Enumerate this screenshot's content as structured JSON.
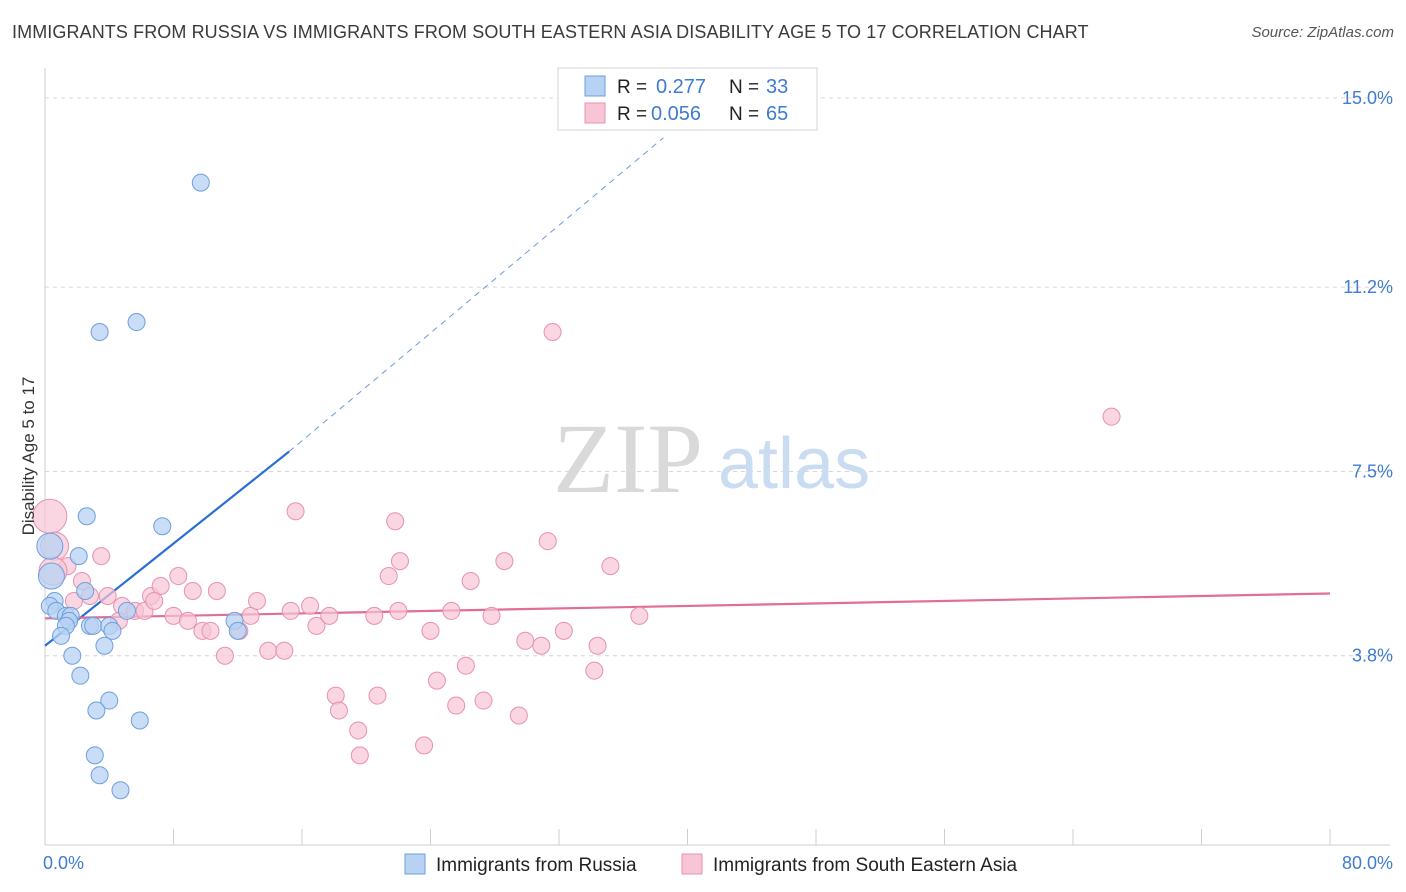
{
  "title": "IMMIGRANTS FROM RUSSIA VS IMMIGRANTS FROM SOUTH EASTERN ASIA DISABILITY AGE 5 TO 17 CORRELATION CHART",
  "source": "Source: ZipAtlas.com",
  "watermark": {
    "zip": "ZIP",
    "atlas": "atlas"
  },
  "colors": {
    "russia_fill": "#b7d2f3",
    "russia_stroke": "#6e9fdc",
    "russia_line": "#2b6fd1",
    "sea_fill": "#f7c5d6",
    "sea_stroke": "#e890b0",
    "sea_line": "#e26d97",
    "grid": "#d7d7d7",
    "axis_label": "#3f7bd0"
  },
  "legend": {
    "rows": [
      {
        "r_label": "R = ",
        "r_value": "0.277",
        "n_label": "N = ",
        "n_value": "33"
      },
      {
        "r_label": "R = ",
        "r_value": "0.056",
        "n_label": "N = ",
        "n_value": "65"
      }
    ]
  },
  "chart_data": {
    "type": "scatter",
    "title": "IMMIGRANTS FROM RUSSIA VS IMMIGRANTS FROM SOUTH EASTERN ASIA DISABILITY AGE 5 TO 17 CORRELATION CHART",
    "xlabel": "",
    "ylabel": "Disability Age 5 to 17",
    "xlim": [
      0,
      80
    ],
    "ylim": [
      0,
      15.5
    ],
    "x_tick_labels": [
      "0.0%",
      "80.0%"
    ],
    "y_ticks": [
      3.8,
      7.5,
      11.2,
      15.0
    ],
    "y_tick_labels": [
      "3.8%",
      "7.5%",
      "11.2%",
      "15.0%"
    ],
    "grid": true,
    "series": [
      {
        "name": "Immigrants from Russia",
        "R": 0.277,
        "N": 33,
        "trend": {
          "x0": 0,
          "y0": 4.0,
          "x1_solid": 15.2,
          "y1_solid": 7.9,
          "x1_dash": 38.5,
          "y1_dash": 14.2
        },
        "points": [
          [
            9.7,
            13.3
          ],
          [
            3.4,
            10.3
          ],
          [
            5.7,
            10.5
          ],
          [
            2.6,
            6.6
          ],
          [
            7.3,
            6.4
          ],
          [
            0.3,
            6.0
          ],
          [
            2.1,
            5.8
          ],
          [
            0.4,
            5.4
          ],
          [
            2.5,
            5.1
          ],
          [
            0.6,
            4.9
          ],
          [
            0.3,
            4.8
          ],
          [
            0.7,
            4.7
          ],
          [
            1.3,
            4.6
          ],
          [
            1.6,
            4.6
          ],
          [
            5.1,
            4.7
          ],
          [
            1.5,
            4.5
          ],
          [
            1.3,
            4.4
          ],
          [
            2.8,
            4.4
          ],
          [
            3.0,
            4.4
          ],
          [
            4.0,
            4.4
          ],
          [
            4.2,
            4.3
          ],
          [
            11.8,
            4.5
          ],
          [
            1.0,
            4.2
          ],
          [
            3.7,
            4.0
          ],
          [
            1.7,
            3.8
          ],
          [
            2.2,
            3.4
          ],
          [
            4.0,
            2.9
          ],
          [
            3.2,
            2.7
          ],
          [
            5.9,
            2.5
          ],
          [
            3.1,
            1.8
          ],
          [
            3.4,
            1.4
          ],
          [
            4.7,
            1.1
          ],
          [
            12.0,
            4.3
          ]
        ]
      },
      {
        "name": "Immigrants from South Eastern Asia",
        "R": 0.056,
        "N": 65,
        "trend": {
          "x0": 0,
          "y0": 4.55,
          "x1": 80,
          "y1": 5.05
        },
        "points": [
          [
            0.3,
            6.6
          ],
          [
            0.6,
            6.0
          ],
          [
            1.4,
            5.6
          ],
          [
            3.5,
            5.8
          ],
          [
            2.3,
            5.3
          ],
          [
            2.8,
            5.0
          ],
          [
            3.9,
            5.0
          ],
          [
            4.8,
            4.8
          ],
          [
            5.6,
            4.7
          ],
          [
            4.6,
            4.5
          ],
          [
            6.2,
            4.7
          ],
          [
            6.6,
            5.0
          ],
          [
            7.2,
            5.2
          ],
          [
            8.3,
            5.4
          ],
          [
            9.2,
            5.1
          ],
          [
            10.7,
            5.1
          ],
          [
            6.8,
            4.9
          ],
          [
            8.0,
            4.6
          ],
          [
            8.9,
            4.5
          ],
          [
            9.8,
            4.3
          ],
          [
            10.3,
            4.3
          ],
          [
            11.2,
            3.8
          ],
          [
            12.1,
            4.3
          ],
          [
            12.8,
            4.6
          ],
          [
            13.2,
            4.9
          ],
          [
            13.9,
            3.9
          ],
          [
            14.9,
            3.9
          ],
          [
            15.3,
            4.7
          ],
          [
            15.6,
            6.7
          ],
          [
            16.5,
            4.8
          ],
          [
            16.9,
            4.4
          ],
          [
            18.1,
            3.0
          ],
          [
            17.7,
            4.6
          ],
          [
            18.3,
            2.7
          ],
          [
            19.5,
            2.3
          ],
          [
            19.6,
            1.8
          ],
          [
            20.5,
            4.6
          ],
          [
            20.7,
            3.0
          ],
          [
            21.4,
            5.4
          ],
          [
            21.8,
            6.5
          ],
          [
            22.1,
            5.7
          ],
          [
            22.0,
            4.7
          ],
          [
            23.6,
            2.0
          ],
          [
            24.0,
            4.3
          ],
          [
            24.4,
            3.3
          ],
          [
            25.3,
            4.7
          ],
          [
            25.6,
            2.8
          ],
          [
            26.2,
            3.6
          ],
          [
            26.5,
            5.3
          ],
          [
            27.3,
            2.9
          ],
          [
            27.8,
            4.6
          ],
          [
            28.6,
            5.7
          ],
          [
            29.5,
            2.6
          ],
          [
            29.9,
            4.1
          ],
          [
            30.9,
            4.0
          ],
          [
            31.3,
            6.1
          ],
          [
            31.6,
            10.3
          ],
          [
            32.3,
            4.3
          ],
          [
            34.2,
            3.5
          ],
          [
            34.4,
            4.0
          ],
          [
            35.2,
            5.6
          ],
          [
            37.0,
            4.6
          ],
          [
            66.4,
            8.6
          ],
          [
            0.5,
            5.5
          ],
          [
            1.8,
            4.9
          ]
        ]
      }
    ]
  },
  "bottom_legend": [
    {
      "label": "Immigrants from Russia"
    },
    {
      "label": "Immigrants from South Eastern Asia"
    }
  ]
}
